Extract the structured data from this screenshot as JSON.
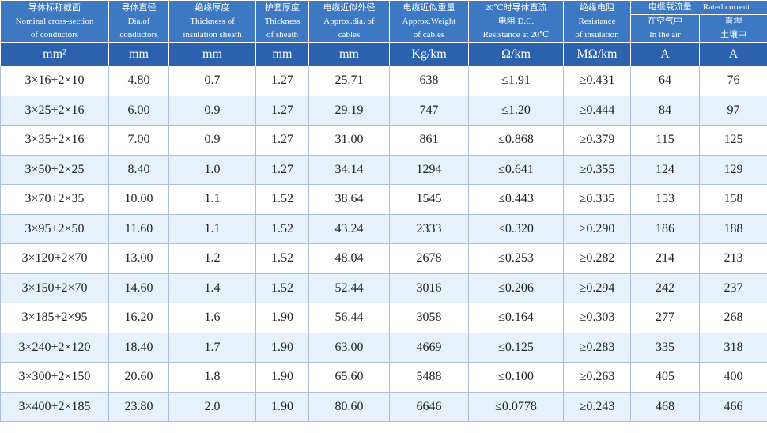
{
  "header": {
    "columns": [
      [
        "导体标称截面",
        "Nominal cross-section",
        "of conductors"
      ],
      [
        "导体直径",
        "Dia.of",
        "conductors"
      ],
      [
        "绝缘厚度",
        "Thickness of",
        "insulation sheath"
      ],
      [
        "护套厚度",
        "Thickness",
        "of sheath"
      ],
      [
        "电缆近似外径",
        "Approx.dia. of",
        "cables"
      ],
      [
        "电缆近似重量",
        "Approx.Weight",
        "of cables"
      ],
      [
        "20℃时导体直流",
        "电阻 D.C.",
        "Resistance at 20℃"
      ],
      [
        "绝缘电阻",
        "Resistance",
        "of insulation"
      ]
    ],
    "group": [
      "电缆载流量",
      "Rated current"
    ],
    "subcolumns": [
      [
        "在空气中",
        "In the air"
      ],
      [
        "直埋",
        "土壤中"
      ]
    ]
  },
  "units": [
    "mm²",
    "mm",
    "mm",
    "mm",
    "mm",
    "Kg/km",
    "Ω/km",
    "MΩ/km",
    "A",
    "A"
  ],
  "rows": [
    [
      "3×16+2×10",
      "4.80",
      "0.7",
      "1.27",
      "25.71",
      "638",
      "≤1.91",
      "≥0.431",
      "64",
      "76"
    ],
    [
      "3×25+2×16",
      "6.00",
      "0.9",
      "1.27",
      "29.19",
      "747",
      "≤1.20",
      "≥0.444",
      "84",
      "97"
    ],
    [
      "3×35+2×16",
      "7.00",
      "0.9",
      "1.27",
      "31.00",
      "861",
      "≤0.868",
      "≥0.379",
      "115",
      "125"
    ],
    [
      "3×50+2×25",
      "8.40",
      "1.0",
      "1.27",
      "34.14",
      "1294",
      "≤0.641",
      "≥0.355",
      "124",
      "129"
    ],
    [
      "3×70+2×35",
      "10.00",
      "1.1",
      "1.52",
      "38.64",
      "1545",
      "≤0.443",
      "≥0.335",
      "153",
      "158"
    ],
    [
      "3×95+2×50",
      "11.60",
      "1.1",
      "1.52",
      "43.24",
      "2333",
      "≤0.320",
      "≥0.290",
      "186",
      "188"
    ],
    [
      "3×120+2×70",
      "13.00",
      "1.2",
      "1.52",
      "48.04",
      "2678",
      "≤0.253",
      "≥0.282",
      "214",
      "213"
    ],
    [
      "3×150+2×70",
      "14.60",
      "1.4",
      "1.52",
      "52.44",
      "3016",
      "≤0.206",
      "≥0.294",
      "242",
      "237"
    ],
    [
      "3×185+2×95",
      "16.20",
      "1.6",
      "1.90",
      "56.44",
      "3058",
      "≤0.164",
      "≥0.303",
      "277",
      "268"
    ],
    [
      "3×240+2×120",
      "18.40",
      "1.7",
      "1.90",
      "63.00",
      "4669",
      "≤0.125",
      "≥0.283",
      "335",
      "318"
    ],
    [
      "3×300+2×150",
      "20.60",
      "1.8",
      "1.90",
      "65.60",
      "5488",
      "≤0.100",
      "≥0.263",
      "405",
      "400"
    ],
    [
      "3×400+2×185",
      "23.80",
      "2.0",
      "1.90",
      "80.60",
      "6646",
      "≤0.0778",
      "≥0.243",
      "468",
      "466"
    ]
  ]
}
